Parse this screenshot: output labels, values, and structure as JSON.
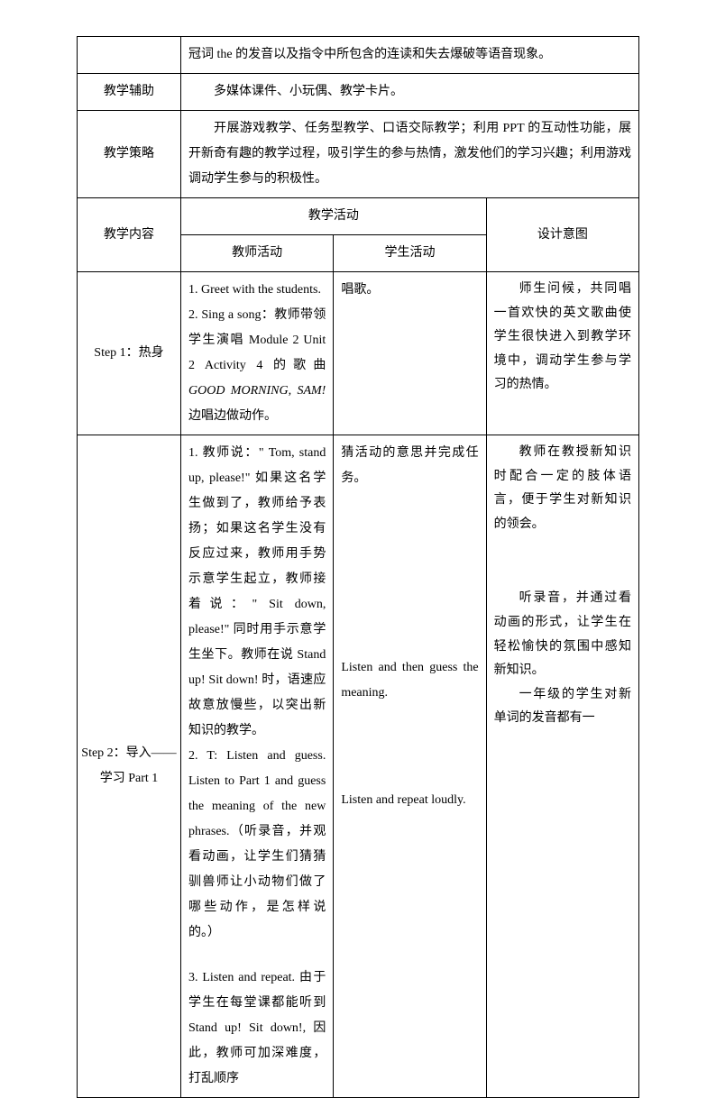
{
  "row1_content": "冠词 the 的发音以及指令中所包含的连读和失去爆破等语音现象。",
  "row2_label": "教学辅助",
  "row2_content": "多媒体课件、小玩偶、教学卡片。",
  "row3_label": "教学策略",
  "row3_content": "开展游戏教学、任务型教学、口语交际教学；利用 PPT 的互动性功能，展开新奇有趣的教学过程，吸引学生的参与热情，激发他们的学习兴趣；利用游戏调动学生参与的积极性。",
  "row4_col1": "教学内容",
  "row4_col2": "教学活动",
  "row4_col3": "设计意图",
  "row5_col1": "教师活动",
  "row5_col2": "学生活动",
  "step1_label": "Step 1：热身",
  "step1_teacher_1": "1. Greet with the students.",
  "step1_teacher_2": "2. Sing a song：教师带领学生演唱 Module 2 Unit 2 Activity 4 的歌曲",
  "step1_teacher_3_italic": "GOOD MORNING, SAM!",
  "step1_teacher_3_rest": " 边唱边做动作。",
  "step1_student": "唱歌。",
  "step1_design": "师生问候，共同唱一首欢快的英文歌曲使学生很快进入到教学环境中，调动学生参与学习的热情。",
  "step2_label_1": "Step 2：导入——",
  "step2_label_2": "学习 Part 1",
  "step2_teacher_1": "1. 教师说：\" Tom, stand up, please!\" 如果这名学生做到了，教师给予表扬；如果这名学生没有反应过来，教师用手势示意学生起立，教师接着说：\" Sit down, please!\" 同时用手示意学生坐下。教师在说 Stand up! Sit down! 时，语速应故意放慢些，以突出新知识的教学。",
  "step2_teacher_2": "2. T: Listen and guess. Listen to Part 1 and guess the meaning of the new phrases.（听录音，并观看动画，让学生们猜猜驯兽师让小动物们做了哪些动作，是怎样说的。）",
  "step2_teacher_3": "3. Listen and repeat. 由于学生在每堂课都能听到 Stand up! Sit down!, 因此，教师可加深难度，打乱顺序",
  "step2_student_1": "猜活动的意思并完成任务。",
  "step2_student_2": "Listen and then guess the meaning.",
  "step2_student_3": "Listen and repeat loudly.",
  "step2_design_1": "教师在教授新知识时配合一定的肢体语言，便于学生对新知识的领会。",
  "step2_design_2": "听录音，并通过看动画的形式，让学生在轻松愉快的氛围中感知新知识。",
  "step2_design_3": "一年级的学生对新单词的发音都有一"
}
